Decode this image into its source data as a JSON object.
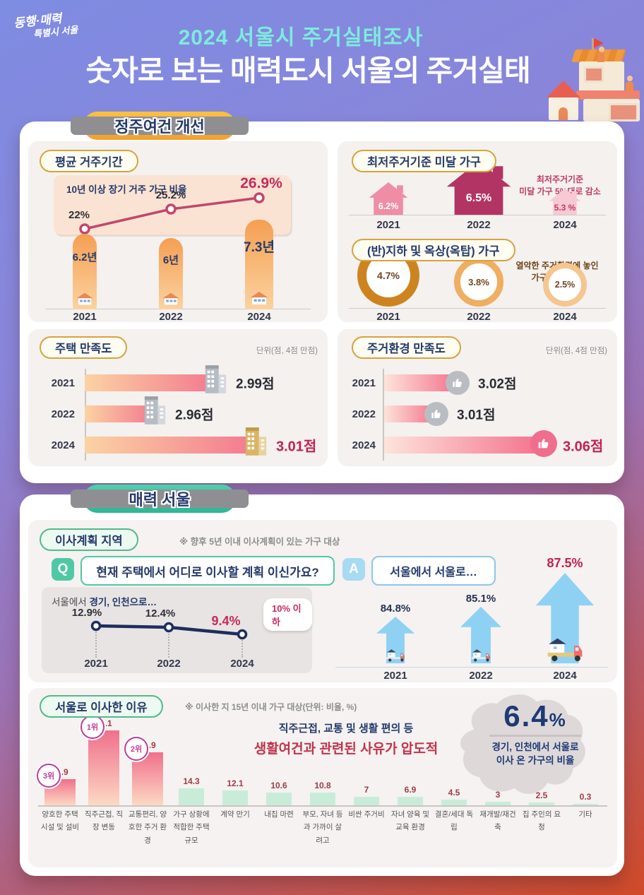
{
  "header": {
    "logo_line1": "동행·매력",
    "logo_line2": "특별시 서울",
    "title": "2024 서울시 주거실태조사",
    "subtitle": "숫자로 보는 매력도시 서울의 주거실태"
  },
  "colors": {
    "accent_pink": "#c2245c",
    "navy": "#243a6b",
    "teal_ribbon": "#3fc0a0",
    "yellow_ribbon": "#f6a92f",
    "mint_bar": "#c9ecd9",
    "blue_arrow": "#8ed1f3",
    "orange_donut": "#cd8420"
  },
  "section1": {
    "ribbon": "정주여건 개선",
    "avg_residence": {
      "title": "평균 거주기간",
      "chart_label": "10년 이상 장기 거주 가구 비율",
      "points": [
        {
          "year": "2021",
          "value": "22%"
        },
        {
          "year": "2022",
          "value": "25.2%"
        },
        {
          "year": "2024",
          "value": "26.9%"
        }
      ],
      "bars": [
        {
          "year": "2021",
          "label": "6.2년"
        },
        {
          "year": "2022",
          "label": "6년"
        },
        {
          "year": "2024",
          "label": "7.3년"
        }
      ]
    },
    "substandard": {
      "title": "최저주거기준 미달 가구",
      "note_line1": "최저주거기준",
      "note_line2": "미달 가구 5%대로 감소",
      "items": [
        {
          "year": "2021",
          "value": "6.2%"
        },
        {
          "year": "2022",
          "value": "6.5%"
        },
        {
          "year": "2024",
          "value": "5.3 %"
        }
      ]
    },
    "basement": {
      "title": "(반)지하 및 옥상(옥탑) 가구",
      "note_line1": "열악한 주거환경에 놓인",
      "note_line2": "가구 지속 감소",
      "items": [
        {
          "year": "2021",
          "value": "4.7%"
        },
        {
          "year": "2022",
          "value": "3.8%"
        },
        {
          "year": "2024",
          "value": "2.5%"
        }
      ]
    },
    "housing_sat": {
      "title": "주택 만족도",
      "unit": "단위(점, 4점 만점)",
      "rows": [
        {
          "year": "2021",
          "value": "2.99점"
        },
        {
          "year": "2022",
          "value": "2.96점"
        },
        {
          "year": "2024",
          "value": "3.01점"
        }
      ]
    },
    "env_sat": {
      "title": "주거환경 만족도",
      "unit": "단위(점, 4점 만점)",
      "rows": [
        {
          "year": "2021",
          "value": "3.02점"
        },
        {
          "year": "2022",
          "value": "3.01점"
        },
        {
          "year": "2024",
          "value": "3.06점"
        }
      ]
    }
  },
  "section2": {
    "ribbon": "매력 서울",
    "move_plan": {
      "title": "이사계획 지역",
      "note": "※ 향후 5년 이내 이사계획이 있는 가구 대상",
      "q_label": "Q",
      "question": "현재 주택에서 어디로 이사할 계획 이신가요?",
      "a_label": "A",
      "answer": "서울에서 서울로…",
      "chart_label_normal": "서울에서 ",
      "chart_label_bold": "경기, 인천으로…",
      "badge": "10% 이하",
      "points": [
        {
          "year": "2021",
          "value": "12.9%"
        },
        {
          "year": "2022",
          "value": "12.4%"
        },
        {
          "year": "2024",
          "value": "9.4%"
        }
      ],
      "arrows": [
        {
          "year": "2021",
          "value": "84.8%"
        },
        {
          "year": "2022",
          "value": "85.1%"
        },
        {
          "year": "2024",
          "value": "87.5%"
        }
      ]
    },
    "move_reason": {
      "title": "서울로 이사한 이유",
      "note": "※ 이사한 지 15년 이내 가구 대상(단위: 비율, %)",
      "annotation_line1": "직주근접, 교통 및 생활 편의 등",
      "annotation_line2": "생활여건과 관련된 사유가 압도적",
      "highlight_value": "6.4",
      "highlight_unit": "%",
      "caption_line1": "경기, 인천에서 서울로",
      "caption_line2": "이사 온 가구의 비율"
    }
  },
  "chart_data": [
    {
      "id": "long_term_residence_rate",
      "type": "line",
      "title": "10년 이상 장기 거주 가구 비율",
      "categories": [
        "2021",
        "2022",
        "2024"
      ],
      "values": [
        22,
        25.2,
        26.9
      ],
      "unit": "%"
    },
    {
      "id": "avg_residence_years",
      "type": "bar",
      "title": "평균 거주기간",
      "categories": [
        "2021",
        "2022",
        "2024"
      ],
      "values": [
        6.2,
        6,
        7.3
      ],
      "unit": "년"
    },
    {
      "id": "substandard_households",
      "type": "bar",
      "title": "최저주거기준 미달 가구",
      "categories": [
        "2021",
        "2022",
        "2024"
      ],
      "values": [
        6.2,
        6.5,
        5.3
      ],
      "unit": "%",
      "annotation": "최저주거기준 미달 가구 5%대로 감소"
    },
    {
      "id": "basement_rooftop_households",
      "type": "bar",
      "title": "(반)지하 및 옥상(옥탑) 가구",
      "categories": [
        "2021",
        "2022",
        "2024"
      ],
      "values": [
        4.7,
        3.8,
        2.5
      ],
      "unit": "%",
      "annotation": "열악한 주거환경에 놓인 가구 지속 감소"
    },
    {
      "id": "housing_satisfaction",
      "type": "bar",
      "title": "주택 만족도",
      "categories": [
        "2021",
        "2022",
        "2024"
      ],
      "values": [
        2.99,
        2.96,
        3.01
      ],
      "unit": "점",
      "scale_max": 4
    },
    {
      "id": "environment_satisfaction",
      "type": "bar",
      "title": "주거환경 만족도",
      "categories": [
        "2021",
        "2022",
        "2024"
      ],
      "values": [
        3.02,
        3.01,
        3.06
      ],
      "unit": "점",
      "scale_max": 4
    },
    {
      "id": "move_to_gyeonggi_incheon",
      "type": "line",
      "title": "서울에서 경기, 인천으로…",
      "categories": [
        "2021",
        "2022",
        "2024"
      ],
      "values": [
        12.9,
        12.4,
        9.4
      ],
      "unit": "%",
      "annotation": "10% 이하"
    },
    {
      "id": "move_within_seoul",
      "type": "bar",
      "title": "서울에서 서울로…",
      "categories": [
        "2021",
        "2022",
        "2024"
      ],
      "values": [
        84.8,
        85.1,
        87.5
      ],
      "unit": "%"
    },
    {
      "id": "move_reasons",
      "type": "bar",
      "title": "서울로 이사한 이유",
      "unit": "%",
      "categories": [
        "양호한 주택 시설 및 설비",
        "직주근접, 직장 변동",
        "교통편리, 양호한 주거 환경",
        "가구 상황에 적합한 주택 규모",
        "계약 만기",
        "내집 마련",
        "부모, 자녀 등과 가까이 살려고",
        "비싼 주거비",
        "자녀 양육 및 교육 환경",
        "결혼/세대 독립",
        "재개발/재건축",
        "집 주인의 요청",
        "기타"
      ],
      "values": [
        21.9,
        62.1,
        43.9,
        14.3,
        12.1,
        10.6,
        10.8,
        7,
        6.9,
        4.5,
        3,
        2.5,
        0.3
      ],
      "rank_badges": [
        {
          "index": 1,
          "label": "1위"
        },
        {
          "index": 2,
          "label": "2위"
        },
        {
          "index": 0,
          "label": "3위"
        }
      ]
    },
    {
      "id": "moved_from_gyeonggi_incheon_share",
      "type": "bar",
      "title": "경기, 인천에서 서울로 이사 온 가구의 비율",
      "values": [
        6.4
      ],
      "unit": "%"
    }
  ]
}
